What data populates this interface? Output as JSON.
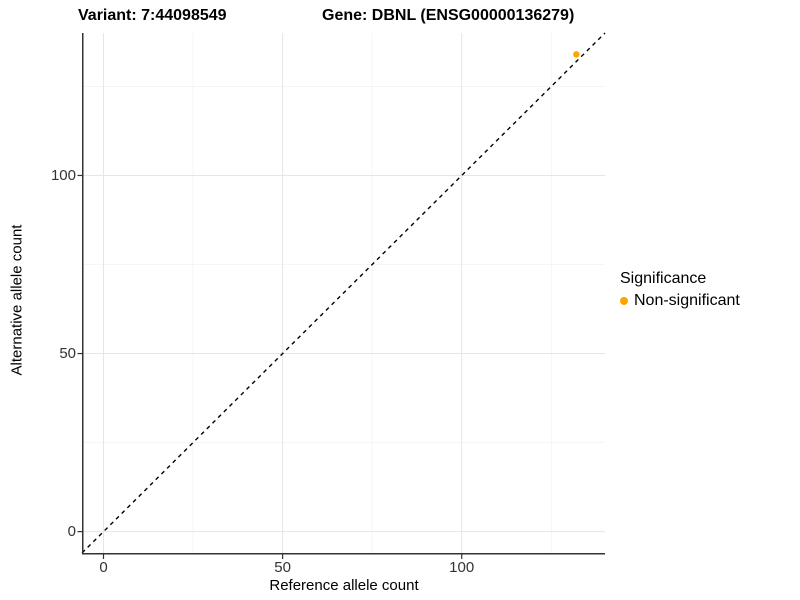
{
  "titles": {
    "variant": "Variant: 7:44098549",
    "gene": "Gene: DBNL (ENSG00000136279)"
  },
  "legend": {
    "title": "Significance",
    "entries": [
      {
        "label": "Non-significant",
        "color": "#FFA500",
        "marker": "circle-icon"
      }
    ]
  },
  "chart_data": {
    "type": "scatter",
    "title": "Variant: 7:44098549 / Gene: DBNL (ENSG00000136279)",
    "xlabel": "Reference allele count",
    "ylabel": "Alternative allele count",
    "xlim": [
      -6,
      140
    ],
    "ylim": [
      -6,
      140
    ],
    "xticks": [
      0,
      50,
      100
    ],
    "yticks": [
      0,
      50,
      100
    ],
    "minor_gridlines": [
      25,
      75,
      125
    ],
    "grid": true,
    "grid_major_color": "#E6E6E6",
    "grid_minor_color": "#F3F3F3",
    "axis_line_color": "#333333",
    "reference_line": {
      "type": "identity",
      "style": "dashed",
      "from": -6,
      "to": 140,
      "color": "#000000"
    },
    "series": [
      {
        "name": "Non-significant",
        "color": "#FFA500",
        "points": [
          {
            "x": 132,
            "y": 134
          }
        ]
      }
    ],
    "legend_position": "right"
  }
}
